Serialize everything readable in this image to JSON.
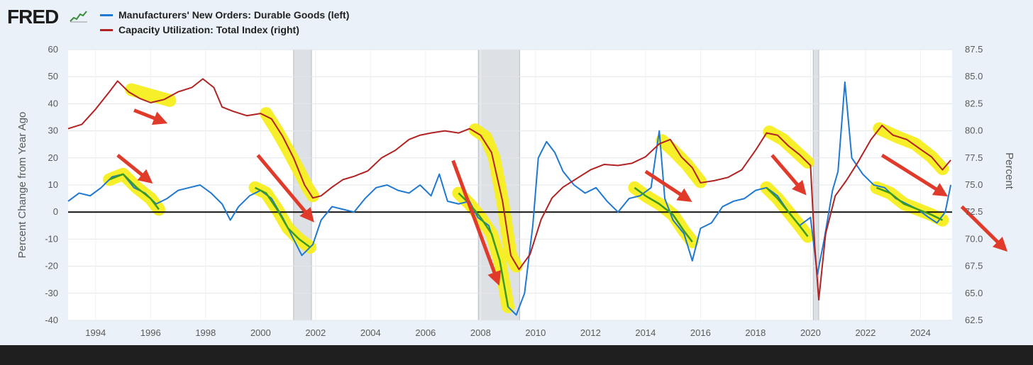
{
  "brand": {
    "logo_text": "FRED"
  },
  "legend": [
    {
      "label": "Manufacturers' New Orders: Durable Goods (left)",
      "color": "#1f78d1"
    },
    {
      "label": "Capacity Utilization: Total Index (right)",
      "color": "#b22222"
    }
  ],
  "colors": {
    "plot_bg": "#ffffff",
    "recession": "#dde1e6",
    "highlight": "#f6ee1e",
    "annotation_arrow": "#e03a2a",
    "zero_line": "#111111"
  },
  "chart_data": {
    "type": "line",
    "ylabel": "Percent Change from Year Ago",
    "y2label": "Percent",
    "grid": true,
    "legend_position": "top-left",
    "x_ticks": [
      "1994",
      "1996",
      "1998",
      "2000",
      "2002",
      "2004",
      "2006",
      "2008",
      "2010",
      "2012",
      "2014",
      "2016",
      "2018",
      "2020",
      "2022",
      "2024"
    ],
    "xlim": [
      1993.0,
      2025.15
    ],
    "ylim": [
      -40,
      60
    ],
    "y_ticks": [
      "-40",
      "-30",
      "-20",
      "-10",
      "0",
      "10",
      "20",
      "30",
      "40",
      "50",
      "60"
    ],
    "y2lim": [
      62.5,
      87.5
    ],
    "y2_ticks": [
      "62.5",
      "65.0",
      "67.5",
      "70.0",
      "72.5",
      "75.0",
      "77.5",
      "80.0",
      "82.5",
      "85.0",
      "87.5"
    ],
    "recessions": [
      [
        2001.2,
        2001.85
      ],
      [
        2007.92,
        2009.42
      ],
      [
        2020.1,
        2020.3
      ]
    ],
    "series": [
      {
        "name": "Manufacturers' New Orders: Durable Goods (left)",
        "axis": "left",
        "color": "#1f78d1",
        "points": [
          [
            1993.0,
            4
          ],
          [
            1993.4,
            7
          ],
          [
            1993.8,
            6
          ],
          [
            1994.2,
            9
          ],
          [
            1994.6,
            13
          ],
          [
            1995.0,
            14
          ],
          [
            1995.4,
            9
          ],
          [
            1995.8,
            7
          ],
          [
            1996.2,
            3
          ],
          [
            1996.6,
            5
          ],
          [
            1997.0,
            8
          ],
          [
            1997.4,
            9
          ],
          [
            1997.8,
            10
          ],
          [
            1998.2,
            7
          ],
          [
            1998.6,
            3
          ],
          [
            1998.9,
            -3
          ],
          [
            1999.2,
            2
          ],
          [
            1999.6,
            6
          ],
          [
            2000.0,
            8
          ],
          [
            2000.4,
            5
          ],
          [
            2000.8,
            -2
          ],
          [
            2001.2,
            -10
          ],
          [
            2001.5,
            -16
          ],
          [
            2001.9,
            -12
          ],
          [
            2002.2,
            -3
          ],
          [
            2002.6,
            2
          ],
          [
            2003.0,
            1
          ],
          [
            2003.4,
            0
          ],
          [
            2003.8,
            5
          ],
          [
            2004.2,
            9
          ],
          [
            2004.6,
            10
          ],
          [
            2005.0,
            8
          ],
          [
            2005.4,
            7
          ],
          [
            2005.8,
            10
          ],
          [
            2006.2,
            6
          ],
          [
            2006.5,
            14
          ],
          [
            2006.8,
            4
          ],
          [
            2007.2,
            3
          ],
          [
            2007.6,
            4
          ],
          [
            2007.9,
            -2
          ],
          [
            2008.3,
            -5
          ],
          [
            2008.7,
            -18
          ],
          [
            2009.0,
            -35
          ],
          [
            2009.3,
            -38
          ],
          [
            2009.6,
            -30
          ],
          [
            2009.9,
            -5
          ],
          [
            2010.1,
            20
          ],
          [
            2010.4,
            26
          ],
          [
            2010.7,
            22
          ],
          [
            2011.0,
            15
          ],
          [
            2011.4,
            10
          ],
          [
            2011.8,
            7
          ],
          [
            2012.2,
            9
          ],
          [
            2012.6,
            4
          ],
          [
            2013.0,
            0
          ],
          [
            2013.4,
            5
          ],
          [
            2013.8,
            6
          ],
          [
            2014.2,
            9
          ],
          [
            2014.5,
            30
          ],
          [
            2014.7,
            5
          ],
          [
            2015.0,
            -3
          ],
          [
            2015.4,
            -8
          ],
          [
            2015.7,
            -18
          ],
          [
            2016.0,
            -6
          ],
          [
            2016.4,
            -4
          ],
          [
            2016.8,
            2
          ],
          [
            2017.2,
            4
          ],
          [
            2017.6,
            5
          ],
          [
            2018.0,
            8
          ],
          [
            2018.4,
            9
          ],
          [
            2018.8,
            6
          ],
          [
            2019.2,
            0
          ],
          [
            2019.6,
            -5
          ],
          [
            2020.0,
            -2
          ],
          [
            2020.25,
            -23
          ],
          [
            2020.5,
            -10
          ],
          [
            2020.8,
            8
          ],
          [
            2021.0,
            15
          ],
          [
            2021.25,
            48
          ],
          [
            2021.5,
            20
          ],
          [
            2021.9,
            14
          ],
          [
            2022.3,
            10
          ],
          [
            2022.7,
            9
          ],
          [
            2023.1,
            5
          ],
          [
            2023.5,
            3
          ],
          [
            2023.9,
            1
          ],
          [
            2024.3,
            -2
          ],
          [
            2024.6,
            -4
          ],
          [
            2024.9,
            0
          ],
          [
            2025.1,
            10
          ]
        ]
      },
      {
        "name": "Capacity Utilization: Total Index (right)",
        "axis": "right",
        "color": "#b22222",
        "points": [
          [
            1993.0,
            80.2
          ],
          [
            1993.5,
            80.6
          ],
          [
            1994.0,
            82.0
          ],
          [
            1994.5,
            83.6
          ],
          [
            1994.8,
            84.6
          ],
          [
            1995.2,
            83.6
          ],
          [
            1995.6,
            83.0
          ],
          [
            1996.0,
            82.6
          ],
          [
            1996.5,
            82.9
          ],
          [
            1997.0,
            83.6
          ],
          [
            1997.5,
            84.0
          ],
          [
            1997.9,
            84.8
          ],
          [
            1998.3,
            84.0
          ],
          [
            1998.6,
            82.2
          ],
          [
            1999.0,
            81.8
          ],
          [
            1999.5,
            81.4
          ],
          [
            2000.0,
            81.6
          ],
          [
            2000.4,
            81.1
          ],
          [
            2000.8,
            79.5
          ],
          [
            2001.2,
            77.5
          ],
          [
            2001.6,
            75.0
          ],
          [
            2001.9,
            73.8
          ],
          [
            2002.2,
            74.0
          ],
          [
            2002.6,
            74.8
          ],
          [
            2003.0,
            75.5
          ],
          [
            2003.4,
            75.8
          ],
          [
            2003.9,
            76.3
          ],
          [
            2004.4,
            77.5
          ],
          [
            2004.9,
            78.2
          ],
          [
            2005.4,
            79.2
          ],
          [
            2005.8,
            79.6
          ],
          [
            2006.2,
            79.8
          ],
          [
            2006.7,
            80.0
          ],
          [
            2007.2,
            79.8
          ],
          [
            2007.6,
            80.2
          ],
          [
            2008.0,
            79.6
          ],
          [
            2008.4,
            78.0
          ],
          [
            2008.8,
            73.5
          ],
          [
            2009.1,
            68.5
          ],
          [
            2009.4,
            67.2
          ],
          [
            2009.8,
            68.6
          ],
          [
            2010.2,
            71.8
          ],
          [
            2010.6,
            73.8
          ],
          [
            2011.0,
            74.8
          ],
          [
            2011.5,
            75.6
          ],
          [
            2012.0,
            76.4
          ],
          [
            2012.5,
            76.9
          ],
          [
            2013.0,
            76.8
          ],
          [
            2013.5,
            77.0
          ],
          [
            2014.0,
            77.6
          ],
          [
            2014.5,
            78.8
          ],
          [
            2014.9,
            79.2
          ],
          [
            2015.3,
            77.6
          ],
          [
            2015.7,
            76.6
          ],
          [
            2016.0,
            75.2
          ],
          [
            2016.5,
            75.4
          ],
          [
            2017.0,
            75.7
          ],
          [
            2017.5,
            76.4
          ],
          [
            2018.0,
            78.2
          ],
          [
            2018.4,
            79.8
          ],
          [
            2018.8,
            79.6
          ],
          [
            2019.2,
            78.6
          ],
          [
            2019.6,
            77.8
          ],
          [
            2020.0,
            76.8
          ],
          [
            2020.15,
            69.5
          ],
          [
            2020.3,
            64.4
          ],
          [
            2020.55,
            70.5
          ],
          [
            2020.9,
            74.0
          ],
          [
            2021.3,
            75.4
          ],
          [
            2021.7,
            77.0
          ],
          [
            2022.2,
            79.2
          ],
          [
            2022.6,
            80.5
          ],
          [
            2023.0,
            79.6
          ],
          [
            2023.5,
            79.2
          ],
          [
            2024.0,
            78.3
          ],
          [
            2024.4,
            77.6
          ],
          [
            2024.8,
            76.4
          ],
          [
            2025.1,
            77.3
          ]
        ]
      }
    ],
    "highlights": [
      {
        "axis": "right",
        "points": [
          [
            1995.3,
            83.8
          ],
          [
            1996.7,
            82.8
          ]
        ]
      },
      {
        "axis": "right",
        "points": [
          [
            2000.2,
            81.6
          ],
          [
            2000.6,
            80.0
          ],
          [
            2001.0,
            78.2
          ],
          [
            2001.4,
            76.3
          ],
          [
            2001.7,
            74.8
          ],
          [
            2001.9,
            74.0
          ]
        ]
      },
      {
        "axis": "right",
        "points": [
          [
            2007.8,
            80.1
          ],
          [
            2008.2,
            79.4
          ],
          [
            2008.5,
            77.5
          ],
          [
            2008.8,
            73.5
          ],
          [
            2009.1,
            68.5
          ],
          [
            2009.3,
            67.5
          ]
        ]
      },
      {
        "axis": "right",
        "points": [
          [
            2014.6,
            79.1
          ],
          [
            2015.0,
            78.2
          ],
          [
            2015.5,
            76.9
          ],
          [
            2016.0,
            75.3
          ]
        ]
      },
      {
        "axis": "right",
        "points": [
          [
            2018.5,
            79.9
          ],
          [
            2019.0,
            79.2
          ],
          [
            2019.6,
            77.8
          ],
          [
            2019.9,
            77.1
          ]
        ]
      },
      {
        "axis": "right",
        "points": [
          [
            2022.5,
            80.2
          ],
          [
            2023.2,
            79.4
          ],
          [
            2023.8,
            78.8
          ],
          [
            2024.4,
            77.6
          ],
          [
            2024.8,
            76.5
          ]
        ]
      },
      {
        "axis": "left",
        "points": [
          [
            1994.5,
            12
          ],
          [
            1995.0,
            14
          ],
          [
            1995.5,
            9
          ],
          [
            1996.0,
            5
          ],
          [
            1996.3,
            1
          ]
        ]
      },
      {
        "axis": "left",
        "points": [
          [
            1999.8,
            9
          ],
          [
            2000.2,
            7
          ],
          [
            2000.6,
            1
          ],
          [
            2001.0,
            -6
          ],
          [
            2001.4,
            -10
          ],
          [
            2001.8,
            -13
          ]
        ]
      },
      {
        "axis": "left",
        "points": [
          [
            2007.2,
            7
          ],
          [
            2007.6,
            3
          ],
          [
            2008.0,
            -2
          ],
          [
            2008.4,
            -8
          ],
          [
            2008.7,
            -18
          ],
          [
            2009.0,
            -35
          ]
        ]
      },
      {
        "axis": "left",
        "points": [
          [
            2013.6,
            9
          ],
          [
            2014.0,
            6
          ],
          [
            2014.5,
            3
          ],
          [
            2015.0,
            -1
          ],
          [
            2015.4,
            -7
          ],
          [
            2015.7,
            -11
          ]
        ]
      },
      {
        "axis": "left",
        "points": [
          [
            2018.4,
            9
          ],
          [
            2018.8,
            5
          ],
          [
            2019.2,
            0
          ],
          [
            2019.6,
            -5
          ],
          [
            2019.9,
            -9
          ]
        ]
      },
      {
        "axis": "left",
        "points": [
          [
            2022.4,
            9
          ],
          [
            2022.9,
            7
          ],
          [
            2023.4,
            3
          ],
          [
            2023.9,
            1
          ],
          [
            2024.4,
            -1
          ],
          [
            2024.8,
            -3
          ]
        ]
      }
    ],
    "arrows": [
      {
        "axis": "right",
        "from": [
          1995.4,
          81.9
        ],
        "to": [
          1996.4,
          80.9
        ]
      },
      {
        "axis": "left",
        "from": [
          1994.8,
          21
        ],
        "to": [
          1995.9,
          12
        ]
      },
      {
        "axis": "left",
        "from": [
          1999.9,
          21
        ],
        "to": [
          2001.8,
          -2
        ]
      },
      {
        "axis": "left",
        "from": [
          2007.0,
          19
        ],
        "to": [
          2008.6,
          -25
        ]
      },
      {
        "axis": "left",
        "from": [
          2014.0,
          15
        ],
        "to": [
          2015.5,
          5
        ]
      },
      {
        "axis": "left",
        "from": [
          2018.6,
          21
        ],
        "to": [
          2019.7,
          8
        ]
      },
      {
        "axis": "left",
        "from": [
          2022.6,
          21
        ],
        "to": [
          2024.8,
          7
        ]
      },
      {
        "axis": "left",
        "from": [
          2025.5,
          2
        ],
        "to": [
          2027.0,
          -13
        ]
      }
    ]
  }
}
